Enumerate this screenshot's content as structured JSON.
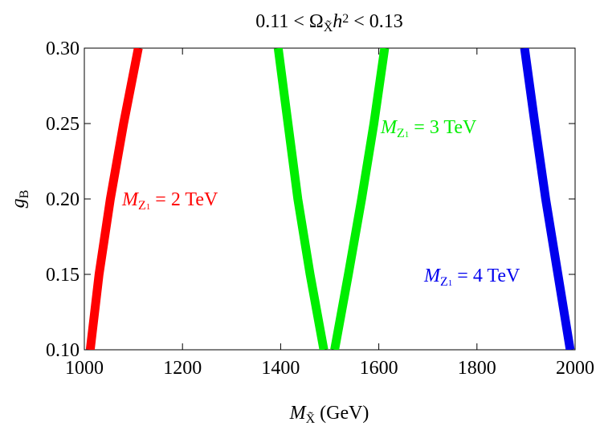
{
  "chart_data": {
    "type": "line",
    "title": [
      "0.11 < Ω",
      "X̃",
      "h",
      "2",
      " < 0.13"
    ],
    "x_label": [
      "M",
      "X̃",
      " (GeV)"
    ],
    "y_label": [
      "g",
      "B"
    ],
    "xlim": [
      1000,
      2000
    ],
    "xticks": [
      1000,
      1200,
      1400,
      1600,
      1800,
      2000
    ],
    "ylim": [
      0.1,
      0.3
    ],
    "yticks": [
      {
        "value": 0.1,
        "label": "0.10"
      },
      {
        "value": 0.15,
        "label": "0.15"
      },
      {
        "value": 0.2,
        "label": "0.20"
      },
      {
        "value": 0.25,
        "label": "0.25"
      },
      {
        "value": 0.3,
        "label": "0.30"
      }
    ],
    "series": [
      {
        "label": [
          "M",
          "Z",
          "1",
          " = 2 TeV"
        ],
        "color": "#ff0000",
        "x": [
          1012,
          1030,
          1053,
          1080,
          1110
        ],
        "values": [
          0.1,
          0.15,
          0.2,
          0.25,
          0.3
        ]
      },
      {
        "label": [
          "M",
          "Z",
          "1",
          " = 3 TeV"
        ],
        "color": "#00ee00",
        "x": [
          1395,
          1415,
          1435,
          1460,
          1488,
          null,
          1510,
          1538,
          1565,
          1590,
          1612
        ],
        "values": [
          0.3,
          0.25,
          0.2,
          0.15,
          0.1,
          null,
          0.1,
          0.15,
          0.2,
          0.25,
          0.3
        ]
      },
      {
        "label": [
          "M",
          "Z",
          "1",
          " = 4 TeV"
        ],
        "color": "#0000ee",
        "x": [
          1897,
          1918,
          1940,
          1965,
          1990
        ],
        "values": [
          0.3,
          0.25,
          0.2,
          0.15,
          0.1
        ]
      }
    ]
  }
}
